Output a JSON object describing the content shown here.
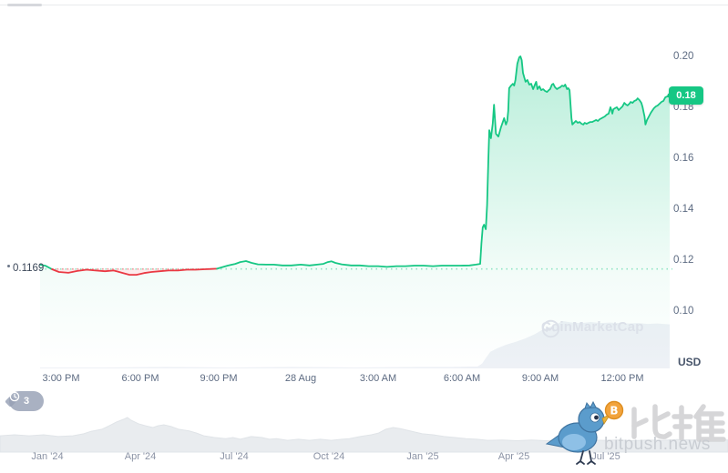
{
  "page": {
    "currency_label": "USD"
  },
  "watermark": {
    "label": "CoinMarketCap"
  },
  "branding": {
    "chinese_name": "比推",
    "domain": "bitpush.news"
  },
  "annotations": {
    "history_badge_count": "3",
    "reference_price_label": "0.1169",
    "last_price_badge": "0.18"
  },
  "colors": {
    "up": "#16c784",
    "down": "#ea3943",
    "down_fill": "rgba(234,57,67,0.10)",
    "badge_bg": "#16c784",
    "volume_fill": "#eef1f6",
    "navigator_fill": "#e9ecef",
    "navigator_edge": "#e0e4e8",
    "ref_dots_up": "rgba(22,199,132,0.45)",
    "ref_dots_down": "rgba(234,57,67,0.55)"
  },
  "chart_data": {
    "type": "line",
    "ylabel": "USD",
    "ylim": [
      0.1,
      0.2
    ],
    "grid": false,
    "y_ticks": [
      0.2,
      0.18,
      0.16,
      0.14,
      0.12,
      0.1
    ],
    "x_tick_labels": [
      "3:00 PM",
      "6:00 PM",
      "9:00 PM",
      "28 Aug",
      "3:00 AM",
      "6:00 AM",
      "9:00 AM",
      "12:00 PM"
    ],
    "reference_price": 0.1169,
    "last_price": 0.185,
    "series": {
      "x_unit": "percent_of_time_axis",
      "y_unit": "USD",
      "intro_above": [
        [
          0,
          0.1186
        ],
        [
          0.9,
          0.1181
        ],
        [
          1.9,
          0.1168
        ]
      ],
      "below_reference": [
        [
          1.9,
          0.1168
        ],
        [
          3,
          0.1157
        ],
        [
          4.5,
          0.1154
        ],
        [
          5.9,
          0.1161
        ],
        [
          7.4,
          0.1166
        ],
        [
          8.8,
          0.1163
        ],
        [
          10.3,
          0.116
        ],
        [
          11.7,
          0.1163
        ],
        [
          13.2,
          0.1153
        ],
        [
          14.2,
          0.1146
        ],
        [
          15.3,
          0.1146
        ],
        [
          16.5,
          0.1153
        ],
        [
          17.7,
          0.1157
        ],
        [
          19,
          0.116
        ],
        [
          20.4,
          0.1163
        ],
        [
          21.9,
          0.1163
        ],
        [
          23.3,
          0.1166
        ],
        [
          24.7,
          0.1166
        ],
        [
          26.2,
          0.1168
        ],
        [
          27.2,
          0.1169
        ],
        [
          28.1,
          0.117
        ]
      ],
      "above_reference": [
        [
          28.1,
          0.117
        ],
        [
          29.8,
          0.1182
        ],
        [
          31,
          0.1189
        ],
        [
          31.8,
          0.1196
        ],
        [
          32.7,
          0.12
        ],
        [
          33.6,
          0.1193
        ],
        [
          34.6,
          0.1187
        ],
        [
          35.9,
          0.1186
        ],
        [
          37.1,
          0.1186
        ],
        [
          38.5,
          0.1183
        ],
        [
          39.9,
          0.1183
        ],
        [
          41.4,
          0.1186
        ],
        [
          42.8,
          0.1183
        ],
        [
          44,
          0.1186
        ],
        [
          45,
          0.1189
        ],
        [
          45.7,
          0.1196
        ],
        [
          46.3,
          0.1199
        ],
        [
          46.9,
          0.1193
        ],
        [
          47.9,
          0.1187
        ],
        [
          49.4,
          0.1183
        ],
        [
          50.8,
          0.1183
        ],
        [
          52.2,
          0.118
        ],
        [
          53.7,
          0.118
        ],
        [
          55.1,
          0.1177
        ],
        [
          56.6,
          0.118
        ],
        [
          58,
          0.118
        ],
        [
          59.5,
          0.1182
        ],
        [
          60.9,
          0.1182
        ],
        [
          62.4,
          0.118
        ],
        [
          63.8,
          0.1182
        ],
        [
          65.3,
          0.1182
        ],
        [
          66.7,
          0.1182
        ],
        [
          68.2,
          0.1183
        ],
        [
          69.2,
          0.1186
        ],
        [
          69.9,
          0.1189
        ],
        [
          70.1,
          0.127
        ],
        [
          70.3,
          0.1332
        ],
        [
          70.5,
          0.1343
        ],
        [
          70.8,
          0.1325
        ],
        [
          71,
          0.142
        ],
        [
          71.2,
          0.16
        ],
        [
          71.35,
          0.1714
        ],
        [
          71.6,
          0.1682
        ],
        [
          71.9,
          0.174
        ],
        [
          72.1,
          0.1814
        ],
        [
          72.4,
          0.17
        ],
        [
          72.8,
          0.1689
        ],
        [
          73.2,
          0.1725
        ],
        [
          73.7,
          0.1761
        ],
        [
          74,
          0.1736
        ],
        [
          74.2,
          0.175
        ],
        [
          74.35,
          0.179
        ],
        [
          74.5,
          0.1879
        ],
        [
          74.8,
          0.1889
        ],
        [
          75.1,
          0.1896
        ],
        [
          75.3,
          0.1889
        ],
        [
          75.5,
          0.1911
        ],
        [
          75.8,
          0.1975
        ],
        [
          76.1,
          0.2
        ],
        [
          76.3,
          0.2004
        ],
        [
          76.5,
          0.1989
        ],
        [
          76.7,
          0.1939
        ],
        [
          76.9,
          0.1921
        ],
        [
          77.1,
          0.1904
        ],
        [
          77.4,
          0.1911
        ],
        [
          77.7,
          0.1893
        ],
        [
          78,
          0.1896
        ],
        [
          78.3,
          0.1875
        ],
        [
          78.6,
          0.1893
        ],
        [
          78.8,
          0.1904
        ],
        [
          79,
          0.1875
        ],
        [
          79.3,
          0.1886
        ],
        [
          79.6,
          0.1871
        ],
        [
          79.9,
          0.1875
        ],
        [
          80.2,
          0.1868
        ],
        [
          80.5,
          0.1864
        ],
        [
          80.8,
          0.1871
        ],
        [
          81,
          0.1875
        ],
        [
          81.3,
          0.1893
        ],
        [
          81.5,
          0.1896
        ],
        [
          81.8,
          0.1882
        ],
        [
          82.1,
          0.1875
        ],
        [
          82.3,
          0.1879
        ],
        [
          82.6,
          0.1882
        ],
        [
          82.9,
          0.1889
        ],
        [
          83.2,
          0.1886
        ],
        [
          83.4,
          0.1893
        ],
        [
          83.7,
          0.1875
        ],
        [
          83.9,
          0.1879
        ],
        [
          84.1,
          0.1871
        ],
        [
          84.25,
          0.1814
        ],
        [
          84.4,
          0.1761
        ],
        [
          84.55,
          0.1736
        ],
        [
          84.8,
          0.1743
        ],
        [
          85.1,
          0.175
        ],
        [
          85.4,
          0.1743
        ],
        [
          85.7,
          0.1746
        ],
        [
          86,
          0.1739
        ],
        [
          86.3,
          0.1736
        ],
        [
          86.5,
          0.1743
        ],
        [
          86.8,
          0.1739
        ],
        [
          87.1,
          0.1743
        ],
        [
          87.4,
          0.1746
        ],
        [
          87.7,
          0.1746
        ],
        [
          88,
          0.175
        ],
        [
          88.3,
          0.1754
        ],
        [
          88.6,
          0.175
        ],
        [
          88.9,
          0.1757
        ],
        [
          89.2,
          0.1761
        ],
        [
          89.4,
          0.1764
        ],
        [
          89.7,
          0.1768
        ],
        [
          90,
          0.1775
        ],
        [
          90.3,
          0.1779
        ],
        [
          90.6,
          0.1804
        ],
        [
          90.75,
          0.1793
        ],
        [
          90.9,
          0.1779
        ],
        [
          91.05,
          0.1796
        ],
        [
          91.3,
          0.18
        ],
        [
          91.6,
          0.1804
        ],
        [
          91.9,
          0.1793
        ],
        [
          92.2,
          0.18
        ],
        [
          92.5,
          0.1807
        ],
        [
          92.8,
          0.1821
        ],
        [
          93.1,
          0.1814
        ],
        [
          93.3,
          0.1811
        ],
        [
          93.6,
          0.1818
        ],
        [
          93.8,
          0.1825
        ],
        [
          94.1,
          0.1821
        ],
        [
          94.4,
          0.1829
        ],
        [
          94.7,
          0.1832
        ],
        [
          94.9,
          0.1839
        ],
        [
          95.2,
          0.1832
        ],
        [
          95.5,
          0.1821
        ],
        [
          95.7,
          0.1804
        ],
        [
          95.85,
          0.1786
        ],
        [
          96,
          0.1768
        ],
        [
          96.15,
          0.1736
        ],
        [
          96.4,
          0.1754
        ],
        [
          96.7,
          0.1768
        ],
        [
          97,
          0.1782
        ],
        [
          97.3,
          0.1793
        ],
        [
          97.5,
          0.18
        ],
        [
          97.8,
          0.1807
        ],
        [
          98.1,
          0.1811
        ],
        [
          98.4,
          0.1818
        ],
        [
          98.7,
          0.1825
        ],
        [
          99,
          0.1829
        ],
        [
          99.3,
          0.1843
        ],
        [
          99.6,
          0.1846
        ],
        [
          100,
          0.185
        ]
      ],
      "volume_profile": [
        [
          0,
          0.02
        ],
        [
          10,
          0.02
        ],
        [
          20,
          0.03
        ],
        [
          30,
          0.02
        ],
        [
          40,
          0.03
        ],
        [
          50,
          0.02
        ],
        [
          60,
          0.03
        ],
        [
          65,
          0.03
        ],
        [
          69.5,
          0.04
        ],
        [
          70.2,
          0.1
        ],
        [
          70.8,
          0.22
        ],
        [
          71.5,
          0.35
        ],
        [
          72.5,
          0.42
        ],
        [
          74,
          0.5
        ],
        [
          75.5,
          0.56
        ],
        [
          77,
          0.63
        ],
        [
          78.5,
          0.72
        ],
        [
          80,
          0.83
        ],
        [
          81.5,
          0.9
        ],
        [
          83,
          1
        ],
        [
          84.5,
          0.97
        ],
        [
          86,
          0.96
        ],
        [
          87.5,
          0.98
        ],
        [
          89,
          0.96
        ],
        [
          90.5,
          0.97
        ],
        [
          92,
          0.96
        ],
        [
          93.5,
          0.95
        ],
        [
          95,
          0.96
        ],
        [
          96.5,
          0.94
        ],
        [
          98,
          0.95
        ],
        [
          100,
          0.93
        ]
      ]
    },
    "navigator": {
      "x_tick_labels": [
        "Jan '24",
        "Apr '24",
        "Jul '24",
        "Oct '24",
        "Jan '25",
        "Apr '25",
        "Jul '25"
      ],
      "points": [
        [
          0,
          0.47
        ],
        [
          2,
          0.5
        ],
        [
          4,
          0.47
        ],
        [
          6,
          0.5
        ],
        [
          8,
          0.45
        ],
        [
          10,
          0.47
        ],
        [
          11.5,
          0.53
        ],
        [
          12.5,
          0.6
        ],
        [
          14,
          0.66
        ],
        [
          15,
          0.76
        ],
        [
          16,
          0.87
        ],
        [
          17,
          0.95
        ],
        [
          17.5,
          1
        ],
        [
          18,
          0.92
        ],
        [
          19,
          0.82
        ],
        [
          20,
          0.76
        ],
        [
          21,
          0.71
        ],
        [
          21.7,
          0.76
        ],
        [
          22.5,
          0.79
        ],
        [
          23.5,
          0.74
        ],
        [
          24.5,
          0.66
        ],
        [
          26,
          0.61
        ],
        [
          27,
          0.55
        ],
        [
          28,
          0.47
        ],
        [
          29.5,
          0.42
        ],
        [
          31,
          0.39
        ],
        [
          32,
          0.42
        ],
        [
          33,
          0.37
        ],
        [
          34.5,
          0.45
        ],
        [
          36,
          0.42
        ],
        [
          37,
          0.37
        ],
        [
          38,
          0.39
        ],
        [
          39.5,
          0.34
        ],
        [
          41,
          0.37
        ],
        [
          42.5,
          0.34
        ],
        [
          44,
          0.37
        ],
        [
          45.5,
          0.34
        ],
        [
          47,
          0.37
        ],
        [
          48,
          0.39
        ],
        [
          49.5,
          0.45
        ],
        [
          51,
          0.5
        ],
        [
          52,
          0.55
        ],
        [
          53,
          0.66
        ],
        [
          54,
          0.71
        ],
        [
          55,
          0.68
        ],
        [
          56,
          0.63
        ],
        [
          57,
          0.58
        ],
        [
          58,
          0.53
        ],
        [
          59.5,
          0.5
        ],
        [
          61,
          0.45
        ],
        [
          62.5,
          0.42
        ],
        [
          64,
          0.39
        ],
        [
          65.5,
          0.37
        ],
        [
          67,
          0.34
        ],
        [
          69,
          0.35
        ],
        [
          71,
          0.33
        ],
        [
          73,
          0.35
        ],
        [
          75,
          0.33
        ],
        [
          77,
          0.35
        ],
        [
          79,
          0.33
        ],
        [
          81,
          0.35
        ],
        [
          83,
          0.34
        ],
        [
          85,
          0.35
        ],
        [
          87,
          0.33
        ],
        [
          89,
          0.35
        ],
        [
          91,
          0.34
        ],
        [
          93,
          0.36
        ],
        [
          95,
          0.35
        ],
        [
          97,
          0.36
        ],
        [
          100,
          0.35
        ]
      ]
    }
  }
}
